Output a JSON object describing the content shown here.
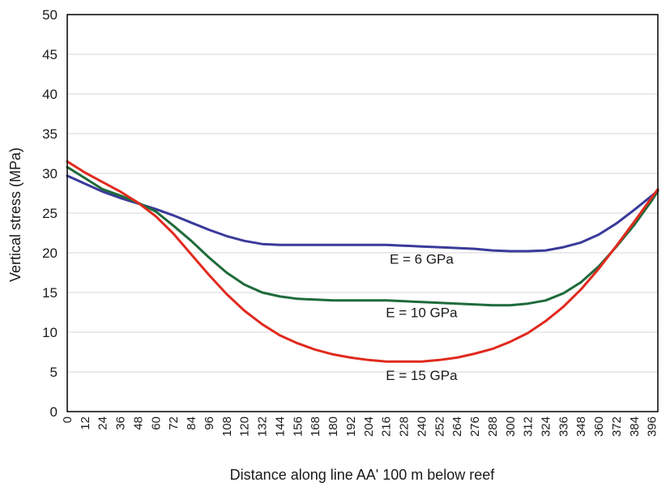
{
  "chart_data": {
    "type": "line",
    "title": "",
    "xlabel": "Distance along line AA' 100 m below reef",
    "ylabel": "Vertical stress (MPa)",
    "xlim": [
      0,
      400
    ],
    "ylim": [
      0,
      50
    ],
    "y_ticks": [
      0,
      5,
      10,
      15,
      20,
      25,
      30,
      35,
      40,
      45,
      50
    ],
    "x_ticks": [
      0,
      12,
      24,
      36,
      48,
      60,
      72,
      84,
      96,
      108,
      120,
      132,
      144,
      156,
      168,
      180,
      192,
      204,
      216,
      228,
      240,
      252,
      264,
      276,
      288,
      300,
      312,
      324,
      336,
      348,
      360,
      372,
      384,
      396
    ],
    "grid": "horizontal",
    "series": [
      {
        "name": "E = 6 GPa",
        "color": "#3a3a9a",
        "x": [
          0,
          12,
          24,
          36,
          48,
          60,
          72,
          84,
          96,
          108,
          120,
          132,
          144,
          156,
          168,
          180,
          192,
          204,
          216,
          228,
          240,
          252,
          264,
          276,
          288,
          300,
          312,
          324,
          336,
          348,
          360,
          372,
          384,
          396,
          400
        ],
        "y": [
          29.7,
          28.7,
          27.7,
          26.9,
          26.2,
          25.5,
          24.7,
          23.8,
          22.9,
          22.1,
          21.5,
          21.1,
          21.0,
          21.0,
          21.0,
          21.0,
          21.0,
          21.0,
          21.0,
          20.9,
          20.8,
          20.7,
          20.6,
          20.5,
          20.3,
          20.2,
          20.2,
          20.3,
          20.7,
          21.3,
          22.3,
          23.7,
          25.4,
          27.2,
          27.8
        ]
      },
      {
        "name": "E = 10 GPa",
        "color": "#1e6b3a",
        "x": [
          0,
          12,
          24,
          36,
          48,
          60,
          72,
          84,
          96,
          108,
          120,
          132,
          144,
          156,
          168,
          180,
          192,
          204,
          216,
          228,
          240,
          252,
          264,
          276,
          288,
          300,
          312,
          324,
          336,
          348,
          360,
          372,
          384,
          396,
          400
        ],
        "y": [
          30.8,
          29.4,
          28.0,
          27.2,
          26.3,
          25.2,
          23.4,
          21.5,
          19.4,
          17.5,
          16.0,
          15.0,
          14.5,
          14.2,
          14.1,
          14.0,
          14.0,
          14.0,
          14.0,
          13.9,
          13.8,
          13.7,
          13.6,
          13.5,
          13.4,
          13.4,
          13.6,
          14.0,
          14.9,
          16.3,
          18.3,
          20.8,
          23.5,
          26.6,
          27.8
        ]
      },
      {
        "name": "E = 15 GPa",
        "color": "#e02a1f",
        "x": [
          0,
          12,
          24,
          36,
          48,
          60,
          72,
          84,
          96,
          108,
          120,
          132,
          144,
          156,
          168,
          180,
          192,
          204,
          216,
          228,
          240,
          252,
          264,
          276,
          288,
          300,
          312,
          324,
          336,
          348,
          360,
          372,
          384,
          396,
          400
        ],
        "y": [
          31.5,
          30.1,
          28.9,
          27.7,
          26.3,
          24.6,
          22.4,
          19.8,
          17.2,
          14.8,
          12.7,
          11.0,
          9.6,
          8.6,
          7.8,
          7.2,
          6.8,
          6.5,
          6.3,
          6.3,
          6.3,
          6.5,
          6.8,
          7.3,
          7.9,
          8.8,
          9.9,
          11.4,
          13.2,
          15.4,
          18.0,
          20.9,
          23.9,
          27.0,
          28.0
        ]
      }
    ],
    "annotations": [
      {
        "text": "E = 6 GPa",
        "x": 240,
        "y": 18.6
      },
      {
        "text": "E = 10 GPa",
        "x": 240,
        "y": 11.9
      },
      {
        "text": "E = 15 GPa",
        "x": 240,
        "y": 4.0
      }
    ]
  }
}
